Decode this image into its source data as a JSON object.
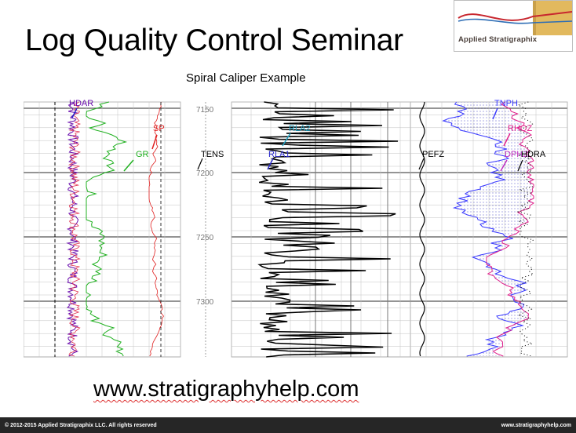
{
  "slide": {
    "title": "Log Quality Control Seminar",
    "subtitle": "Spiral Caliper Example",
    "website": "www.stratigraphyhelp.com"
  },
  "logo": {
    "text": "Applied Stratigraphix",
    "colors": {
      "blue": "#2d6db5",
      "red": "#c8272f",
      "sand": "#e2b95e"
    }
  },
  "log": {
    "depth_labels": [
      "7150",
      "7200",
      "7250",
      "7300"
    ],
    "curves": {
      "hdar": "HDAR",
      "sp": "SP",
      "gr": "GR",
      "tens": "TENS",
      "rla2": "RLA2",
      "rla1": "RLA1",
      "pefz": "PEFZ",
      "tnph": "TNPH",
      "rhoz": "RHOZ",
      "dphz": "DPHZ",
      "hdra": "HDRA"
    },
    "colors": {
      "hdar": "#6a0dad",
      "sp": "#e02020",
      "gr": "#20b020",
      "rla": "#000000",
      "tnph": "#3a3aff",
      "rhoz": "#e0208a",
      "dphz": "#c030c0",
      "fill": "#c8c8ff"
    }
  },
  "footer": {
    "copyright": "© 2012-2015 Applied Stratigraphix LLC. All rights reserved",
    "website": "www.stratigraphyhelp.com"
  }
}
